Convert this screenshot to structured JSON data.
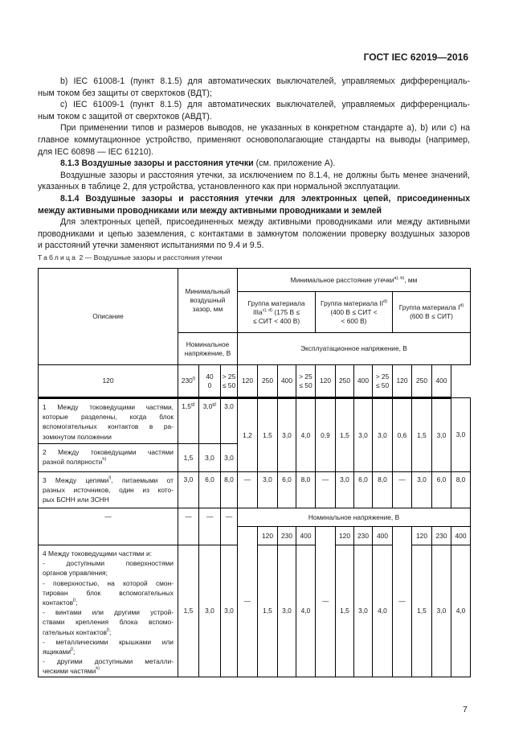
{
  "header": {
    "doc_id": "ГОСТ IEC 62019—2016"
  },
  "body": {
    "p_b": [
      "b)  IEC 61008-1 (пункт 8.1.5) для автоматических выключателей, управляемых дифференциаль-",
      "ным током без защиты от сверхтоков (ВДТ);"
    ],
    "p_c": [
      "c)  IEC 61009-1 (пункт 8.1.5) для автоматических выключателей, управляемых дифференциаль-",
      "ным током с защитой от сверхтоков (АВДТ)."
    ],
    "p_apply": [
      "При применении типов и размеров выводов, не указанных в конкретном стандарте a), b) или c) на",
      "главное коммутационное устройство, применяют основополагающие стандарты на выводы (например,",
      "для IEC 60898 — IEC 61210)."
    ],
    "s813_title": "8.1.3  Воздушные зазоры и расстояния утечки",
    "s813_ref": " (см. приложение А).",
    "p_813": [
      "Воздушные зазоры и расстояния утечки, за исключением по 8.1.4, не должны быть менее значений,",
      "указанных в таблице 2, для устройства, установленного как при нормальной эксплуатации."
    ],
    "s814_title": [
      "8.1.4  Воздушные зазоры и расстояния утечки для электронных цепей, присоединенных",
      "между активными проводниками или между активными проводниками и землей"
    ],
    "p_814": [
      "Для электронных цепей, присоединенных между активными проводниками или между активными",
      "проводниками и цепью заземления, с контактами в замкнутом положении проверку воздушных зазоров",
      "и расстояний утечки заменяют испытаниями по 9.4 и 9.5."
    ]
  },
  "table": {
    "caption_prefix": "Таблица",
    "caption": " 2 — Воздушные зазоры и расстояния утечки",
    "head": {
      "description": "Описание",
      "min_clearance": [
        "Минимальный",
        "воздушный",
        "зазор, мм"
      ],
      "min_creepage": "Минимальное расстояние утечки",
      "min_creepage_sup": "a), b)",
      "min_creepage_unit": ", мм",
      "group_3a": [
        "Группа материала",
        "IIIa",
        "c), d)",
        " (175 В  ≤",
        "≤ СИТ < 400 В)"
      ],
      "group_2": [
        "Группа материала II",
        "d)",
        "(400 В  ≤ СИТ  <",
        "< 600 В)"
      ],
      "group_1": [
        "Группа материала I",
        "d)",
        "(600 В  ≤ СИТ)"
      ],
      "rated_voltage": [
        "Номинальное",
        "напряжение, В"
      ],
      "working_voltage": "Эксплуатационное напряжение, В",
      "v120": "120",
      "v230": "230",
      "v230_sup": "f)",
      "v400a": "40",
      "v400b": "0",
      "gt25": "> 25",
      "le50": "≤ 50",
      "v250": "250",
      "v400": "400"
    },
    "rows": [
      {
        "desc": [
          "1  Между токоведущими частями,",
          "которые разделены, когда блок",
          "вспомогательных контактов в ра-",
          "зомкнутом положении"
        ],
        "clearance": [
          "1,5",
          "3,0",
          "3,0"
        ],
        "clearance_sup": [
          "g)",
          "g)",
          ""
        ],
        "creepage": [
          "1,2",
          "1,5",
          "3,0",
          "4,0",
          "0,9",
          "1,5",
          "3,0",
          "3,0",
          "0,6",
          "1,5",
          "3,0",
          "3,0"
        ]
      },
      {
        "desc": [
          "2  Между токоведущими частями",
          "разной полярности"
        ],
        "desc_sup": "h)",
        "clearance": [
          "1,5",
          "3,0",
          "3,0"
        ]
      },
      {
        "desc": [
          "3  Между цепями",
          "i)",
          ", питаемыми от",
          "разных источников, один из кото-",
          "рых БСНН или ЗСНН"
        ],
        "clearance": [
          "3,0",
          "6,0",
          "8,0"
        ],
        "creepage": [
          "—",
          "3,0",
          "6,0",
          "8,0",
          "—",
          "3,0",
          "6,0",
          "8,0",
          "—",
          "3,0",
          "6,0",
          "8,0"
        ]
      },
      {
        "desc": "—",
        "clearance": [
          "—",
          "—",
          "—"
        ],
        "span_label": "Номинальное напряжение, В",
        "sub": [
          "120",
          "230",
          "400",
          "120",
          "230",
          "400",
          "120",
          "230",
          "400"
        ]
      },
      {
        "desc": [
          {
            "t": "4  Между токоведущими частями и:"
          },
          {
            "t": "- доступными поверхностями"
          },
          {
            "t": "органов управления;"
          },
          {
            "t": "- поверхностью, на которой смон-"
          },
          {
            "t": "тирован блок вспомогательных"
          },
          {
            "t": "контактов",
            "s": "j)",
            "e": ";"
          },
          {
            "t": "- винтами или другими устрой-"
          },
          {
            "t": "ствами крепления блока вспомо-"
          },
          {
            "t": "гательных контактов",
            "s": "j)",
            "e": ";"
          },
          {
            "t": "- металлическими крышками или"
          },
          {
            "t": "ящиками",
            "s": "j)",
            "e": ";"
          },
          {
            "t": "- другими доступными металли-"
          },
          {
            "t": "ческими частями",
            "s": "k)",
            "e": ""
          }
        ],
        "clearance": [
          "1,5",
          "3,0",
          "3,0"
        ],
        "creepage": [
          "—",
          "1,5",
          "3,0",
          "4,0",
          "—",
          "1,5",
          "3,0",
          "4,0",
          "—",
          "1,5",
          "3,0",
          "4,0"
        ]
      }
    ]
  },
  "page_number": "7"
}
